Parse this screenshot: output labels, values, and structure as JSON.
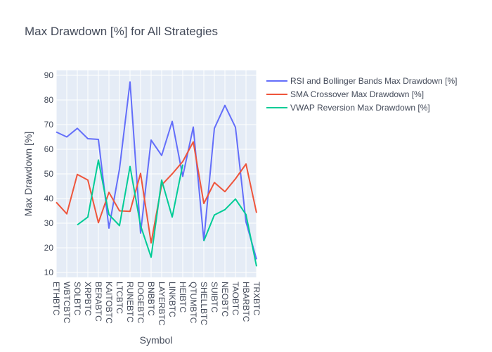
{
  "chart_data": {
    "type": "line",
    "title": "Max Drawdown [%] for All Strategies",
    "xlabel": "Symbol",
    "ylabel": "Max Drawdown [%]",
    "ylim": [
      8,
      92
    ],
    "yticks": [
      10,
      20,
      30,
      40,
      50,
      60,
      70,
      80,
      90
    ],
    "grid": true,
    "legend_position": "right",
    "categories": [
      "ETHBTC",
      "WBTCBTC",
      "SOLBTC",
      "XRPBTC",
      "BERABTC",
      "KAITOBTC",
      "LTCBTC",
      "RUNEBTC",
      "DOGEBTC",
      "BNBBTC",
      "LAYERBTC",
      "LINKBTC",
      "HEIBTC",
      "QTUMBTC",
      "SHELLBTC",
      "SUIBTC",
      "NEOBTC",
      "TAOBTC",
      "HBARBTC",
      "TRXBTC"
    ],
    "series": [
      {
        "name": "RSI and Bollinger Bands Max Drawdown [%]",
        "color": "#636efa",
        "values": [
          67,
          65,
          68.5,
          64.3,
          64,
          28,
          52,
          87.3,
          26,
          63.7,
          57.5,
          71.3,
          49,
          69,
          23,
          68.5,
          77.8,
          68.9,
          30.5,
          15.3
        ]
      },
      {
        "name": "SMA Crossover Max Drawdown [%]",
        "color": "#ef553b",
        "values": [
          38.5,
          33.8,
          49.8,
          47.5,
          30.2,
          42.5,
          35,
          34.8,
          50.2,
          22,
          45.5,
          50,
          55,
          63,
          38,
          46.5,
          42.8,
          48,
          54,
          34.2
        ]
      },
      {
        "name": "VWAP Reversion Max Drawdown [%]",
        "color": "#00cc96",
        "values": [
          null,
          null,
          29.3,
          32.5,
          55.6,
          33.5,
          29,
          53,
          29,
          16.2,
          47.5,
          32.5,
          53.8,
          null,
          22.8,
          33.3,
          35.5,
          39.8,
          33.5,
          12.5
        ]
      }
    ]
  }
}
